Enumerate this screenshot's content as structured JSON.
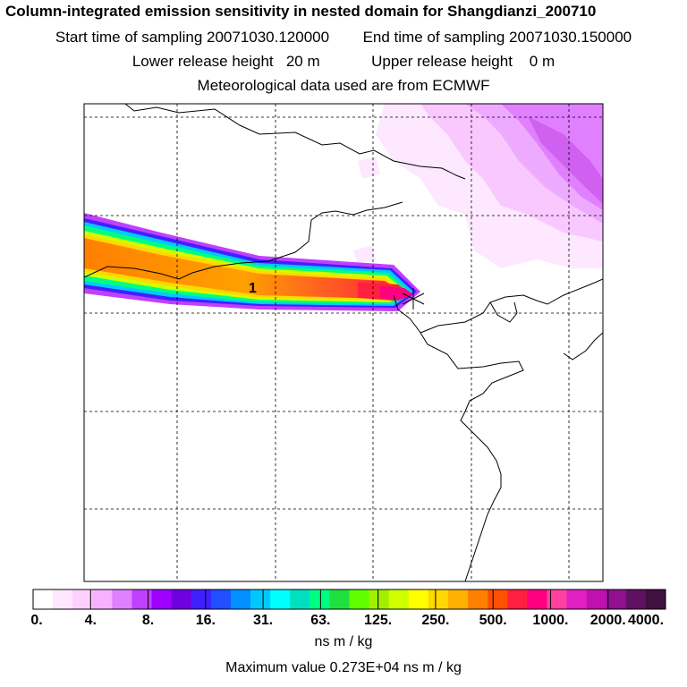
{
  "title": "Column-integrated emission sensitivity in nested domain for Shangdianzi_200710",
  "sampling": {
    "start": "Start time of sampling 20071030.120000",
    "end": "End time of sampling 20071030.150000"
  },
  "release": {
    "lower": "Lower release height   20 m",
    "upper": "Upper release height    0 m"
  },
  "meteo": "Meteorological data used are from ECMWF",
  "map": {
    "marker_label": "1",
    "marker_icon": "release-location-star-icon"
  },
  "colorbar": {
    "labels": [
      "0.",
      "4.",
      "8.",
      "16.",
      "31.",
      "63.",
      "125.",
      "250.",
      "500.",
      "1000.",
      "2000.",
      "4000."
    ],
    "colors": [
      "#ffffff",
      "#ffe8ff",
      "#ffd0ff",
      "#f8b0ff",
      "#e080ff",
      "#c040ff",
      "#a000ff",
      "#7000e0",
      "#4020ff",
      "#2050ff",
      "#0090ff",
      "#00c8ff",
      "#00ffff",
      "#00e0c0",
      "#00ff80",
      "#20e040",
      "#60ff00",
      "#a0f000",
      "#d0ff00",
      "#ffff00",
      "#ffd800",
      "#ffb000",
      "#ff8000",
      "#ff5000",
      "#ff2040",
      "#ff0080",
      "#ff40a0",
      "#e020c0",
      "#c010b0",
      "#901090",
      "#601060",
      "#401040"
    ],
    "units": "ns m / kg"
  },
  "max_value": "Maximum value  0.273E+04 ns m / kg"
}
